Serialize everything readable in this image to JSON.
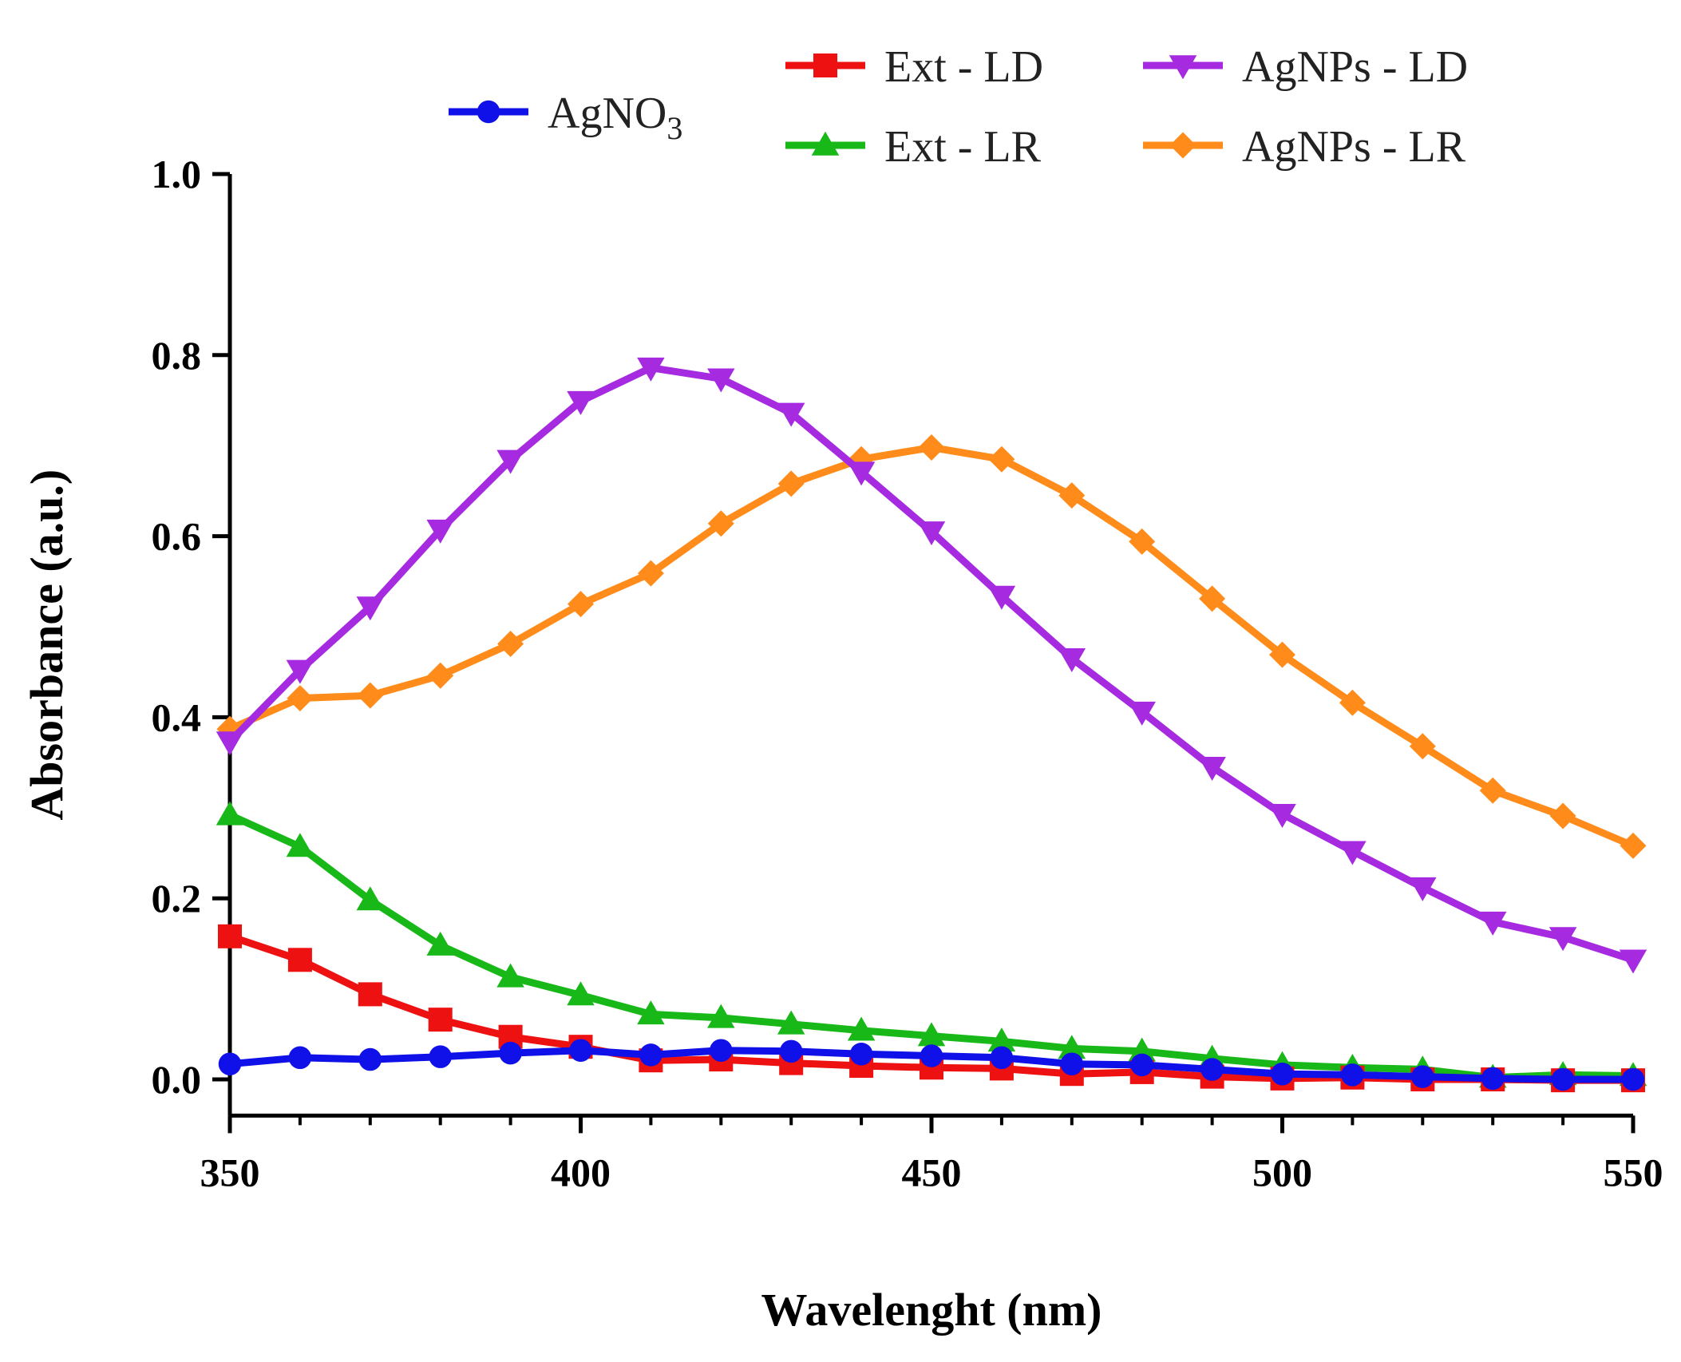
{
  "chart_data": {
    "type": "line",
    "title": "",
    "xlabel": "Wavelenght (nm)",
    "ylabel": "Absorbance (a.u.)",
    "xlim": [
      350,
      550
    ],
    "ylim": [
      -0.04,
      1.0
    ],
    "xticks": [
      350,
      400,
      450,
      500,
      550
    ],
    "xtick_labels": [
      "350",
      "400",
      "450",
      "500",
      "550"
    ],
    "yticks": [
      0.0,
      0.2,
      0.4,
      0.6,
      0.8,
      1.0
    ],
    "ytick_labels": [
      "0.0",
      "0.2",
      "0.4",
      "0.6",
      "0.8",
      "1.0"
    ],
    "grid": false,
    "legend_position": "top",
    "x": [
      350,
      360,
      370,
      380,
      390,
      400,
      410,
      420,
      430,
      440,
      450,
      460,
      470,
      480,
      490,
      500,
      510,
      520,
      530,
      540,
      550
    ],
    "series": [
      {
        "name": "AgNO",
        "name_subscript": "3",
        "color": "#1010e8",
        "marker": "circle",
        "values": [
          0.017,
          0.024,
          0.022,
          0.025,
          0.029,
          0.032,
          0.027,
          0.032,
          0.031,
          0.028,
          0.026,
          0.024,
          0.017,
          0.016,
          0.011,
          0.006,
          0.005,
          0.003,
          0.001,
          0.0,
          0.0
        ]
      },
      {
        "name": "Ext - LD",
        "color": "#ee1111",
        "marker": "square",
        "values": [
          0.158,
          0.132,
          0.094,
          0.066,
          0.047,
          0.036,
          0.021,
          0.022,
          0.018,
          0.015,
          0.013,
          0.012,
          0.006,
          0.008,
          0.003,
          0.001,
          0.002,
          0.0,
          0.0,
          -0.001,
          -0.001
        ]
      },
      {
        "name": "Ext - LR",
        "color": "#18b818",
        "marker": "triangle-up",
        "values": [
          0.292,
          0.257,
          0.198,
          0.148,
          0.113,
          0.093,
          0.072,
          0.068,
          0.061,
          0.054,
          0.048,
          0.042,
          0.034,
          0.031,
          0.023,
          0.016,
          0.013,
          0.011,
          0.002,
          0.005,
          0.004
        ]
      },
      {
        "name": "AgNPs - LD",
        "color": "#a52ae0",
        "marker": "triangle-down",
        "values": [
          0.373,
          0.452,
          0.522,
          0.607,
          0.684,
          0.749,
          0.786,
          0.774,
          0.736,
          0.671,
          0.605,
          0.534,
          0.465,
          0.406,
          0.345,
          0.293,
          0.252,
          0.212,
          0.174,
          0.157,
          0.132
        ]
      },
      {
        "name": "AgNPs - LR",
        "color": "#ff8c1a",
        "marker": "diamond",
        "values": [
          0.387,
          0.421,
          0.424,
          0.446,
          0.481,
          0.525,
          0.559,
          0.614,
          0.658,
          0.685,
          0.698,
          0.685,
          0.645,
          0.594,
          0.531,
          0.469,
          0.416,
          0.368,
          0.319,
          0.291,
          0.258
        ]
      }
    ]
  }
}
